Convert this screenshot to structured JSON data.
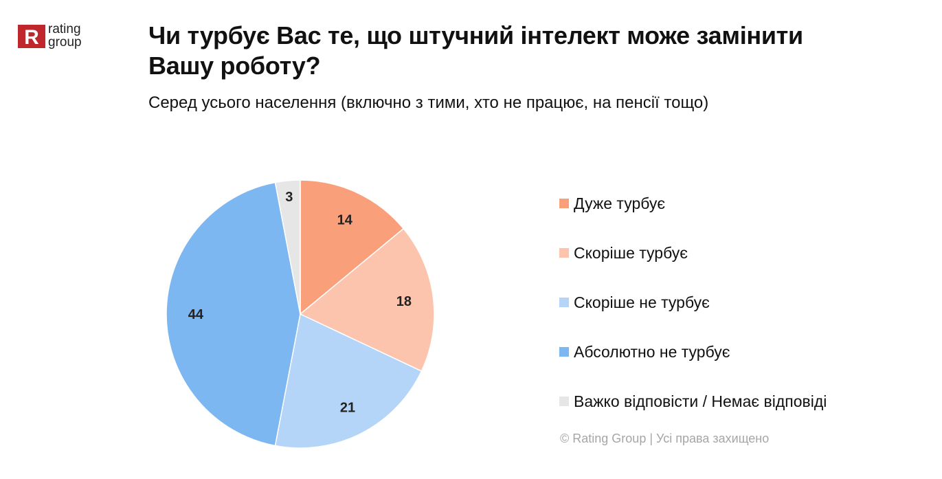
{
  "brand": {
    "logo_letter": "R",
    "logo_line1": "rating",
    "logo_line2": "group",
    "logo_color": "#c0272d"
  },
  "title": "Чи турбує Вас те, що штучний інтелект може замінити Вашу роботу?",
  "subtitle": "Серед усього населення (включно з тими, хто не працює, на пенсії тощо)",
  "footer": "© Rating Group | Усі права захищено",
  "chart_data": {
    "type": "pie",
    "start_angle_deg": 0,
    "direction": "clockwise",
    "slices": [
      {
        "name": "Дуже турбує",
        "value": 14,
        "color": "#f9a07a"
      },
      {
        "name": "Скоріше турбує",
        "value": 18,
        "color": "#fcc4ad"
      },
      {
        "name": "Скоріше не турбує",
        "value": 21,
        "color": "#b5d5f8"
      },
      {
        "name": "Абсолютно не турбує",
        "value": 44,
        "color": "#7db7f1"
      },
      {
        "name": "Важко відповісти / Немає відповіді",
        "value": 3,
        "color": "#e6e6e6"
      }
    ],
    "legend_placement": "right"
  }
}
